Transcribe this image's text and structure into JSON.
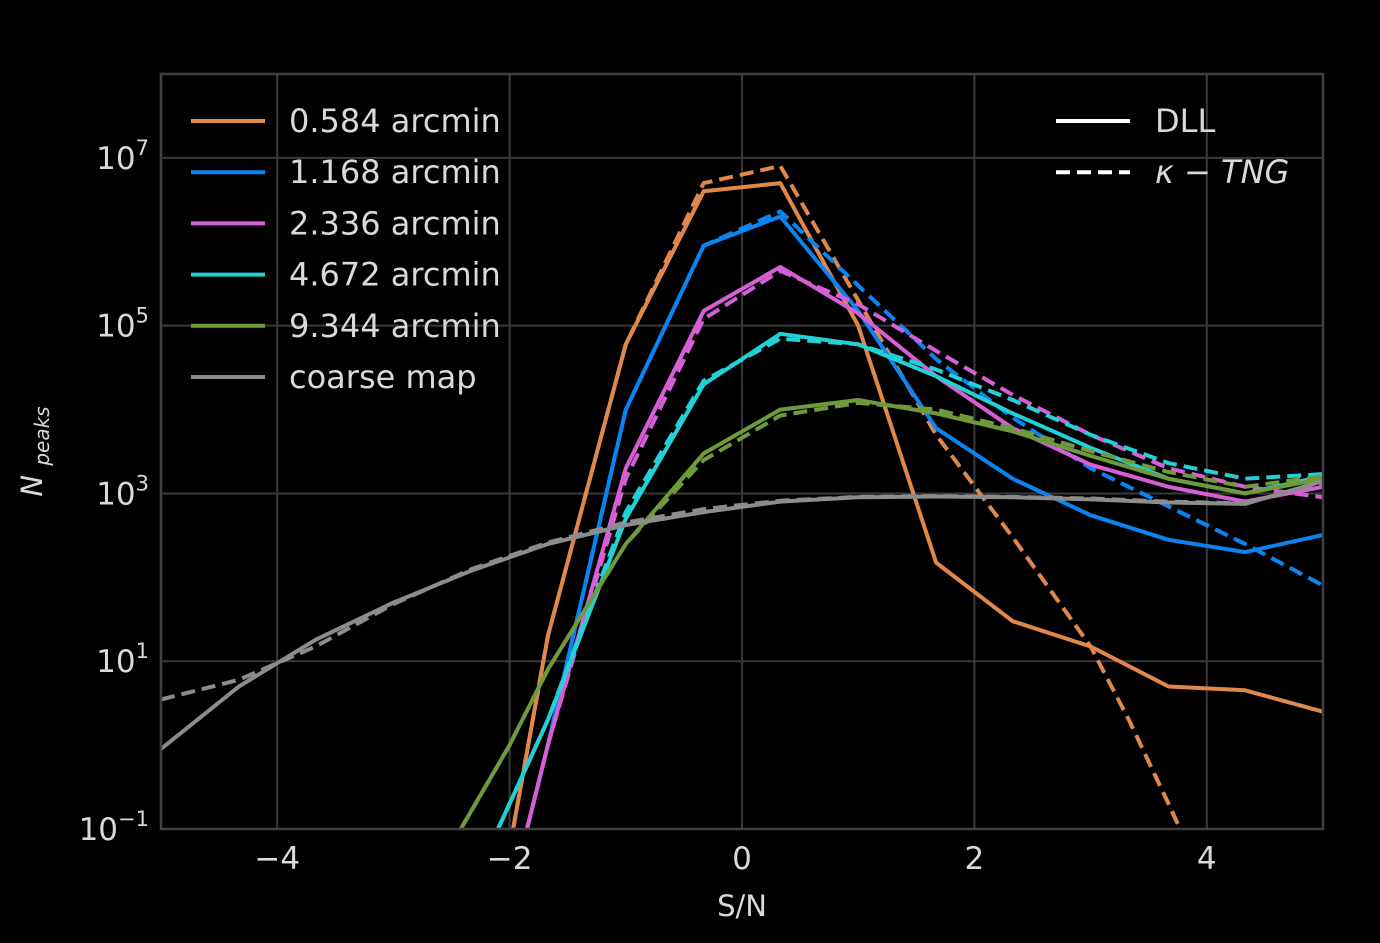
{
  "chart_data": {
    "type": "line",
    "xlabel": "S/N",
    "ylabel_main": "N",
    "ylabel_sub": "peaks",
    "xlim": [
      -5,
      5
    ],
    "ylim": [
      0.1,
      100000000.0
    ],
    "yscale": "log",
    "grid": true,
    "x_ticks": [
      -4,
      -2,
      0,
      2,
      4
    ],
    "x_tick_labels": [
      "−4",
      "−2",
      "0",
      "2",
      "4"
    ],
    "y_ticks": [
      {
        "value": 0.1,
        "base": "10",
        "exp": "−1"
      },
      {
        "value": 10,
        "base": "10",
        "exp": "1"
      },
      {
        "value": 1000,
        "base": "10",
        "exp": "3"
      },
      {
        "value": 100000,
        "base": "10",
        "exp": "5"
      },
      {
        "value": 10000000,
        "base": "10",
        "exp": "7"
      }
    ],
    "legend_colors": {
      "loc": "upper left",
      "entries": [
        {
          "label": "0.584 arcmin",
          "color": "#e0884c"
        },
        {
          "label": "1.168 arcmin",
          "color": "#0a84f0"
        },
        {
          "label": "2.336 arcmin",
          "color": "#d65fd6"
        },
        {
          "label": "4.672 arcmin",
          "color": "#22d0d6"
        },
        {
          "label": "9.344 arcmin",
          "color": "#6e9a3c"
        },
        {
          "label": "coarse map",
          "color": "#8c8c8c"
        }
      ]
    },
    "legend_styles": {
      "loc": "upper right",
      "entries": [
        {
          "label": "DLL",
          "style": "solid"
        },
        {
          "label_prefix": "κ",
          "label_rest": " − TNG",
          "style": "dashed"
        }
      ]
    },
    "series": [
      {
        "name": "0.584 arcmin",
        "style": "solid",
        "color": "#e0884c",
        "x": [
          -1.97,
          -1.67,
          -1.0,
          -0.33,
          0.33,
          1.0,
          1.67,
          2.33,
          3.0,
          3.67,
          4.33,
          5.0
        ],
        "y": [
          0.1,
          20,
          60000,
          4000000,
          5000000,
          100000,
          150,
          30,
          15,
          5,
          4.5,
          2.5
        ]
      },
      {
        "name": "0.584 arcmin",
        "style": "dashed",
        "color": "#e0884c",
        "x": [
          -1.97,
          -1.67,
          -1.0,
          -0.33,
          0.33,
          1.0,
          1.67,
          2.33,
          3.0,
          3.33,
          3.67,
          3.77
        ],
        "y": [
          0.1,
          20,
          60000,
          5000000,
          8000000,
          200000,
          5000,
          300,
          15,
          2,
          0.2,
          0.1
        ]
      },
      {
        "name": "1.168 arcmin",
        "style": "solid",
        "color": "#0a84f0",
        "x": [
          -1.85,
          -1.67,
          -1.0,
          -0.33,
          0.33,
          1.0,
          1.67,
          2.33,
          3.0,
          3.67,
          4.33,
          5.0
        ],
        "y": [
          0.1,
          1,
          10000,
          900000,
          2000000,
          150000,
          6000,
          1500,
          550,
          280,
          200,
          320
        ]
      },
      {
        "name": "1.168 arcmin",
        "style": "dashed",
        "color": "#0a84f0",
        "x": [
          -1.85,
          -1.67,
          -1.0,
          -0.33,
          0.33,
          1.0,
          1.67,
          2.33,
          3.0,
          3.67,
          4.33,
          5.0
        ],
        "y": [
          0.1,
          1,
          10000,
          900000,
          2300000,
          300000,
          40000,
          8000,
          2000,
          700,
          250,
          80
        ]
      },
      {
        "name": "2.336 arcmin",
        "style": "solid",
        "color": "#d65fd6",
        "x": [
          -1.85,
          -1.67,
          -1.0,
          -0.33,
          0.33,
          1.0,
          1.67,
          2.33,
          3.0,
          3.67,
          4.33,
          5.0
        ],
        "y": [
          0.1,
          1,
          2000,
          150000,
          500000,
          140000,
          25000,
          6000,
          2200,
          1200,
          800,
          1200
        ]
      },
      {
        "name": "2.336 arcmin",
        "style": "dashed",
        "color": "#d65fd6",
        "x": [
          -1.85,
          -1.67,
          -1.0,
          -0.33,
          0.33,
          1.0,
          1.67,
          2.33,
          3.0,
          3.67,
          4.33,
          5.0
        ],
        "y": [
          0.1,
          1,
          1500,
          120000,
          450000,
          180000,
          50000,
          15000,
          5000,
          2000,
          1200,
          900
        ]
      },
      {
        "name": "4.672 arcmin",
        "style": "solid",
        "color": "#22d0d6",
        "x": [
          -2.1,
          -1.67,
          -1.0,
          -0.33,
          0.33,
          1.0,
          1.67,
          2.33,
          3.0,
          3.67,
          4.33,
          5.0
        ],
        "y": [
          0.1,
          2,
          500,
          20000,
          80000,
          60000,
          25000,
          9000,
          3500,
          1500,
          1000,
          1600
        ]
      },
      {
        "name": "4.672 arcmin",
        "style": "dashed",
        "color": "#22d0d6",
        "x": [
          -2.1,
          -1.67,
          -1.0,
          -0.33,
          0.33,
          1.0,
          1.67,
          2.33,
          3.0,
          3.67,
          4.33,
          5.0
        ],
        "y": [
          0.1,
          2,
          600,
          22000,
          70000,
          60000,
          30000,
          13000,
          5000,
          2300,
          1500,
          1700
        ]
      },
      {
        "name": "9.344 arcmin",
        "style": "solid",
        "color": "#6e9a3c",
        "x": [
          -2.42,
          -2.0,
          -1.67,
          -1.0,
          -0.33,
          0.33,
          1.0,
          1.67,
          2.33,
          3.0,
          3.67,
          4.33,
          5.0
        ],
        "y": [
          0.1,
          1,
          8,
          250,
          3000,
          10000,
          13000,
          9000,
          5500,
          2800,
          1500,
          1000,
          1500
        ]
      },
      {
        "name": "9.344 arcmin",
        "style": "dashed",
        "color": "#6e9a3c",
        "x": [
          -2.42,
          -2.0,
          -1.67,
          -1.0,
          -0.33,
          0.33,
          1.0,
          1.67,
          2.33,
          3.0,
          3.67,
          4.33,
          5.0
        ],
        "y": [
          0.1,
          1,
          8,
          250,
          2500,
          8500,
          12000,
          10000,
          6000,
          3200,
          1800,
          1200,
          1600
        ]
      },
      {
        "name": "coarse map",
        "style": "solid",
        "color": "#8c8c8c",
        "x": [
          -5.0,
          -4.33,
          -3.67,
          -3.0,
          -2.33,
          -1.67,
          -1.0,
          -0.33,
          0.33,
          1.0,
          1.67,
          2.33,
          3.0,
          3.67,
          4.33,
          5.0
        ],
        "y": [
          0.9,
          5,
          18,
          50,
          120,
          250,
          420,
          600,
          800,
          900,
          920,
          900,
          850,
          780,
          750,
          1400
        ]
      },
      {
        "name": "coarse map",
        "style": "dashed",
        "color": "#8c8c8c",
        "x": [
          -5.0,
          -4.33,
          -3.67,
          -3.0,
          -2.33,
          -1.67,
          -1.0,
          -0.33,
          0.33,
          1.0,
          1.67,
          2.33,
          3.0,
          3.67,
          4.33,
          5.0
        ],
        "y": [
          3.5,
          6,
          15,
          48,
          125,
          260,
          450,
          650,
          820,
          910,
          930,
          910,
          870,
          800,
          760,
          1350
        ]
      }
    ]
  }
}
